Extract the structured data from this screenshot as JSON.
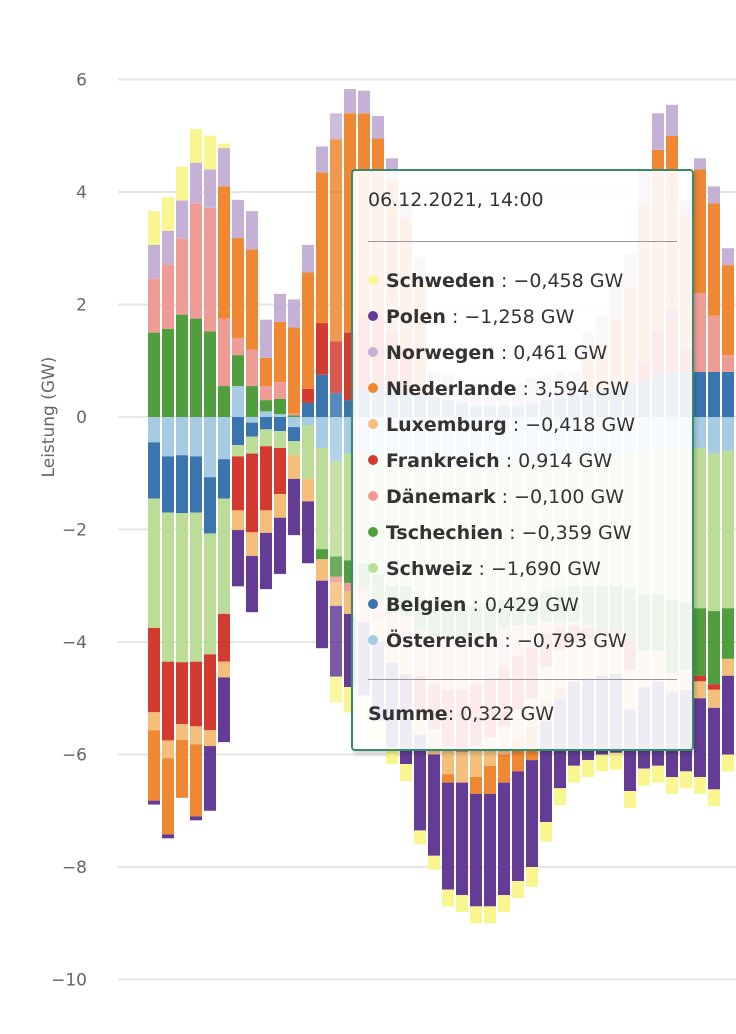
{
  "chart_data": {
    "type": "bar",
    "stacked": true,
    "title": "",
    "xlabel": "",
    "ylabel": "Leistung (GW)",
    "ylim": [
      -10,
      7
    ],
    "yticks": [
      6,
      4,
      2,
      0,
      -2,
      -4,
      -6,
      -8,
      -10
    ],
    "ytick_labels": [
      "6",
      "4",
      "2",
      "0",
      "−2",
      "−4",
      "−6",
      "−8",
      "−10"
    ],
    "grid": true,
    "legend": "none",
    "hovered_index": 13,
    "series": [
      {
        "name": "Österreich",
        "color": "#a6cbe2",
        "values": [
          -0.45,
          -0.7,
          -0.68,
          -0.7,
          -1.07,
          -0.75,
          0.55,
          -0.1,
          0.1,
          0.05,
          -0.18,
          -0.15,
          -0.55,
          -0.79,
          -0.65,
          -0.6,
          -0.7,
          -0.8,
          -0.8,
          -0.9,
          -0.9,
          -0.9,
          -0.95,
          -0.95,
          -0.9,
          -0.85,
          -0.8,
          -0.8,
          -0.8,
          -0.75,
          -0.7,
          -0.7,
          -0.7,
          -0.7,
          -0.65,
          -0.65,
          -0.6,
          -0.55,
          -0.55,
          -0.55,
          -0.65,
          -0.6
        ]
      },
      {
        "name": "Belgien",
        "color": "#3b75af",
        "values": [
          -1.0,
          -1.0,
          -1.03,
          -1.0,
          -1.0,
          -0.7,
          -0.5,
          -0.25,
          -0.22,
          -0.25,
          -0.25,
          0.25,
          0.75,
          0.43,
          0.3,
          0.5,
          0.55,
          0.5,
          0.45,
          0.4,
          0.35,
          0.3,
          0.25,
          0.2,
          0.2,
          0.2,
          0.2,
          0.25,
          0.3,
          0.35,
          0.4,
          0.45,
          0.5,
          0.55,
          0.6,
          0.65,
          0.75,
          0.8,
          0.8,
          0.8,
          0.8,
          0.8
        ]
      },
      {
        "name": "Schweiz",
        "color": "#bcdd97",
        "values": [
          -2.3,
          -2.65,
          -2.65,
          -2.65,
          -2.15,
          -2.05,
          -0.2,
          -0.3,
          -0.3,
          -0.3,
          -0.25,
          -0.95,
          -1.8,
          -1.69,
          -1.9,
          -2.0,
          -2.1,
          -2.2,
          -2.2,
          -2.3,
          -2.35,
          -2.4,
          -2.4,
          -2.4,
          -2.4,
          -2.4,
          -2.4,
          -2.4,
          -2.3,
          -2.3,
          -2.3,
          -2.3,
          -2.3,
          -2.3,
          -2.4,
          -2.5,
          -2.55,
          -2.7,
          -2.75,
          -2.85,
          -2.8,
          -2.8
        ]
      },
      {
        "name": "Tschechien",
        "color": "#519e3e",
        "values": [
          1.5,
          1.57,
          1.82,
          1.75,
          1.52,
          0.55,
          0.55,
          0.55,
          0.2,
          0.27,
          0.03,
          0,
          -0.18,
          -0.36,
          -0.4,
          -0.45,
          -0.5,
          -0.5,
          -0.55,
          -0.6,
          -0.65,
          -0.6,
          -0.6,
          -0.55,
          -0.55,
          -0.5,
          -0.5,
          -0.5,
          -0.55,
          -0.6,
          -0.65,
          -0.7,
          -0.8,
          -0.8,
          -0.9,
          -1.0,
          -1.0,
          -1.3,
          -1.2,
          -1.2,
          -1.3,
          -0.9
        ]
      },
      {
        "name": "Dänemark",
        "color": "#ef9c97",
        "values": [
          0.96,
          1.14,
          1.35,
          2.05,
          2.2,
          1.2,
          0.3,
          0.65,
          0.25,
          0.3,
          0.03,
          0,
          0,
          -0.1,
          -0.15,
          -0.2,
          -0.3,
          -0.45,
          -0.6,
          -0.8,
          -0.85,
          -0.95,
          -0.9,
          -0.85,
          -0.8,
          -0.7,
          -0.55,
          -0.4,
          -0.2,
          -0.1,
          -0.05,
          -0.05,
          0,
          0,
          0,
          0,
          0,
          0,
          0,
          1.4,
          1.0,
          0.3
        ]
      },
      {
        "name": "Frankreich",
        "color": "#d33b30",
        "values": [
          -1.5,
          -1.4,
          -1.1,
          -1.15,
          -1.35,
          -0.85,
          -0.96,
          -1.4,
          -1.14,
          -0.82,
          0,
          0.25,
          0.92,
          0.914,
          1.2,
          1.3,
          1.2,
          1.0,
          0.8,
          -0.6,
          -0.8,
          -1.0,
          -1.1,
          -1.1,
          -1.05,
          -1.05,
          -0.95,
          -0.9,
          -0.6,
          -0.4,
          -0.3,
          -0.2,
          -0.1,
          -0.05,
          -0.55,
          0.3,
          0.8,
          1.1,
          0.4,
          -0.1,
          -0.1,
          0
        ]
      },
      {
        "name": "Luxemburg",
        "color": "#f5bf7b",
        "values": [
          -0.32,
          -0.32,
          -0.28,
          -0.32,
          -0.28,
          -0.28,
          -0.35,
          -0.42,
          -0.4,
          -0.42,
          -0.42,
          -0.4,
          -0.38,
          -0.418,
          -0.4,
          -0.4,
          -0.4,
          -0.42,
          -0.42,
          -0.45,
          -0.45,
          -0.5,
          -0.55,
          -0.55,
          -0.5,
          -0.5,
          -0.5,
          -0.5,
          -0.6,
          -0.65,
          -0.7,
          -0.7,
          -0.7,
          -0.72,
          -0.7,
          -0.65,
          -0.55,
          -0.35,
          -0.35,
          -0.3,
          -0.32,
          -0.3
        ]
      },
      {
        "name": "Niederlande",
        "color": "#ef8733",
        "values": [
          -1.25,
          -1.35,
          -1.03,
          -1.28,
          0,
          2.35,
          1.78,
          1.78,
          0.5,
          1.07,
          1.53,
          2.07,
          2.68,
          3.594,
          3.9,
          3.6,
          3.2,
          2.7,
          2.3,
          2.0,
          0,
          -0.15,
          0,
          -0.3,
          -0.5,
          -0.5,
          -0.6,
          -0.6,
          -0.35,
          -0.2,
          0,
          0.6,
          0.8,
          1.2,
          1.7,
          2.8,
          3.2,
          3.1,
          2.4,
          2.2,
          2.0,
          1.6
        ]
      },
      {
        "name": "Norwegen",
        "color": "#c5b1d6",
        "values": [
          0.6,
          0.6,
          0.68,
          0.72,
          0.68,
          0.68,
          0.68,
          0.68,
          0.68,
          0.5,
          0.5,
          0.49,
          0.46,
          0.461,
          0.43,
          0.4,
          0.4,
          0.4,
          0.4,
          0.45,
          0.45,
          0.45,
          0.3,
          0.4,
          0.4,
          0.4,
          0.4,
          0.45,
          0.45,
          0.45,
          0.4,
          0.45,
          0.5,
          0.55,
          0.6,
          0.65,
          0.65,
          0.55,
          0.25,
          0.2,
          0.3,
          0.3
        ]
      },
      {
        "name": "Polen",
        "color": "#643c95",
        "values": [
          -0.07,
          -0.07,
          0,
          -0.07,
          -1.15,
          -1.15,
          -1.0,
          -1.0,
          -1.0,
          -1.0,
          -1.0,
          -1.1,
          -1.2,
          -1.258,
          -1.3,
          -1.3,
          -1.4,
          -1.5,
          -1.6,
          -1.7,
          -1.8,
          -1.9,
          -2.0,
          -2.0,
          -2.0,
          -2.0,
          -1.95,
          -1.9,
          -1.8,
          -1.6,
          -1.5,
          -1.45,
          -1.4,
          -1.4,
          -1.45,
          -1.45,
          -1.5,
          -1.5,
          -1.45,
          -1.4,
          -1.45,
          -1.4
        ]
      },
      {
        "name": "Schweden",
        "color": "#f9f68f",
        "values": [
          0.6,
          0.6,
          0.6,
          0.6,
          0.6,
          0.08,
          0,
          0,
          0,
          0,
          0,
          0,
          0,
          -0.458,
          -0.45,
          -0.4,
          -0.35,
          -0.3,
          -0.3,
          -0.25,
          -0.25,
          -0.3,
          -0.3,
          -0.3,
          -0.3,
          -0.3,
          -0.3,
          -0.35,
          -0.35,
          -0.3,
          -0.3,
          -0.3,
          -0.3,
          -0.3,
          -0.3,
          -0.3,
          -0.3,
          -0.3,
          -0.3,
          -0.3,
          -0.3,
          -0.3
        ]
      }
    ]
  },
  "tooltip": {
    "title": "06.12.2021, 14:00",
    "rows": [
      {
        "name": "Schweden",
        "value": "−0,458 GW",
        "color": "#f9f68f"
      },
      {
        "name": "Polen",
        "value": "−1,258 GW",
        "color": "#643c95"
      },
      {
        "name": "Norwegen",
        "value": "0,461 GW",
        "color": "#c5b1d6"
      },
      {
        "name": "Niederlande",
        "value": "3,594 GW",
        "color": "#ef8733"
      },
      {
        "name": "Luxemburg",
        "value": "−0,418 GW",
        "color": "#f5bf7b"
      },
      {
        "name": "Frankreich",
        "value": "0,914 GW",
        "color": "#d33b30"
      },
      {
        "name": "Dänemark",
        "value": "−0,100 GW",
        "color": "#ef9c97"
      },
      {
        "name": "Tschechien",
        "value": "−0,359 GW",
        "color": "#519e3e"
      },
      {
        "name": "Schweiz",
        "value": "−1,690 GW",
        "color": "#bcdd97"
      },
      {
        "name": "Belgien",
        "value": "0,429 GW",
        "color": "#3b75af"
      },
      {
        "name": "Österreich",
        "value": "−0,793 GW",
        "color": "#a6cbe2"
      }
    ],
    "sum_label": "Summe",
    "sum_value": ": 0,322 GW",
    "border_color": "#3a8a6e"
  }
}
